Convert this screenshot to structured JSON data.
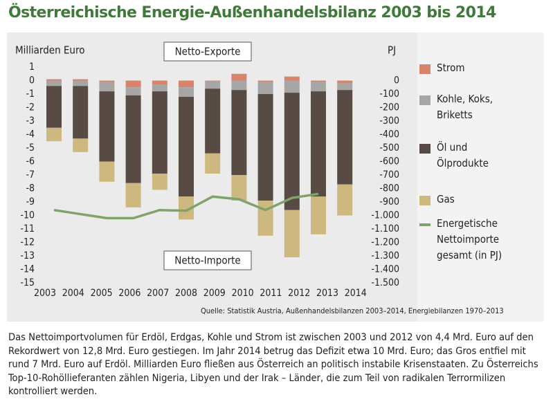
{
  "chart_data": {
    "type": "bar",
    "title": "Österreichische Energie-Außenhandelsbilanz 2003 bis 2014",
    "y_label": "Milliarden Euro",
    "y2_label": "PJ",
    "annotations": [
      "Netto-Exporte",
      "Netto-Importe"
    ],
    "source": "Quelle: Statistik Austria, Außenhandelsbilanzen 2003–2014, Energiebilanzen 1970–2013",
    "caption": "Das Nettoimportvolumen für Erdöl, Erdgas, Kohle und Strom ist zwischen 2003 und 2012 von 4,4 Mrd. Euro auf den Rekordwert von 12,8 Mrd. Euro gestiegen. Im Jahr 2014 betrug das Defizit etwa 10 Mrd. Euro; das Gros entfiel mit rund 7 Mrd. Euro auf Erdöl. Milliarden Euro fließen aus Österreich an politisch instabile Krisenstaaten. Zu Österreichs Top-10-Rohöllieferanten zählen Nigeria, Libyen und der Irak – Länder, die zum Teil von radikalen Terrormilizen kontrolliert werden.",
    "categories": [
      "2003",
      "2004",
      "2005",
      "2006",
      "2007",
      "2008",
      "2009",
      "2010",
      "2011",
      "2012",
      "2013",
      "2014"
    ],
    "series": [
      {
        "name": "Strom",
        "color": "#d9836b",
        "values": [
          0.1,
          0.1,
          -0.1,
          -0.5,
          -0.3,
          -0.5,
          -0.05,
          0.5,
          -0.1,
          0.3,
          -0.1,
          -0.2
        ]
      },
      {
        "name": "Kohle, Koks, Briketts",
        "color": "#a6a6a6",
        "values": [
          -0.4,
          -0.4,
          -0.7,
          -0.6,
          -0.5,
          -0.7,
          -0.55,
          -0.7,
          -0.9,
          -0.9,
          -0.7,
          -0.5
        ]
      },
      {
        "name": "Öl und Ölprodukte",
        "color": "#574b43",
        "values": [
          -3.1,
          -3.9,
          -5.2,
          -6.5,
          -6.1,
          -7.4,
          -4.8,
          -6.3,
          -7.9,
          -8.7,
          -7.8,
          -7.0
        ]
      },
      {
        "name": "Gas",
        "color": "#cdb87f",
        "values": [
          -1.0,
          -1.0,
          -1.5,
          -1.8,
          -1.2,
          -1.7,
          -1.5,
          -1.9,
          -2.6,
          -3.5,
          -2.8,
          -2.3
        ]
      },
      {
        "name": "Energetische Nettoimporte gesamt (in PJ)",
        "color": "#7fa36a",
        "type": "line",
        "axis": "y2",
        "values": [
          -960,
          -990,
          -1020,
          -1020,
          -960,
          -965,
          -860,
          -880,
          -960,
          -870,
          -840,
          null
        ]
      }
    ],
    "ylim": [
      -15,
      1
    ],
    "yticks": [
      1,
      0,
      -1,
      -2,
      -3,
      -4,
      -5,
      -6,
      -7,
      -8,
      -9,
      -10,
      -11,
      -12,
      -13,
      -14,
      -15
    ],
    "y2lim": [
      -1500,
      100
    ],
    "y2ticks": [
      0,
      -100,
      -200,
      -300,
      -400,
      -500,
      -600,
      -700,
      -800,
      -900,
      {
        "value": -1000,
        "label": "-1.000"
      },
      {
        "value": -1100,
        "label": "-1.100"
      },
      {
        "value": -1200,
        "label": "-1.200"
      },
      {
        "value": -1300,
        "label": "-1.300"
      },
      {
        "value": -1400,
        "label": "-1.400"
      },
      {
        "value": -1500,
        "label": "-1.500"
      }
    ],
    "legend": "right"
  }
}
